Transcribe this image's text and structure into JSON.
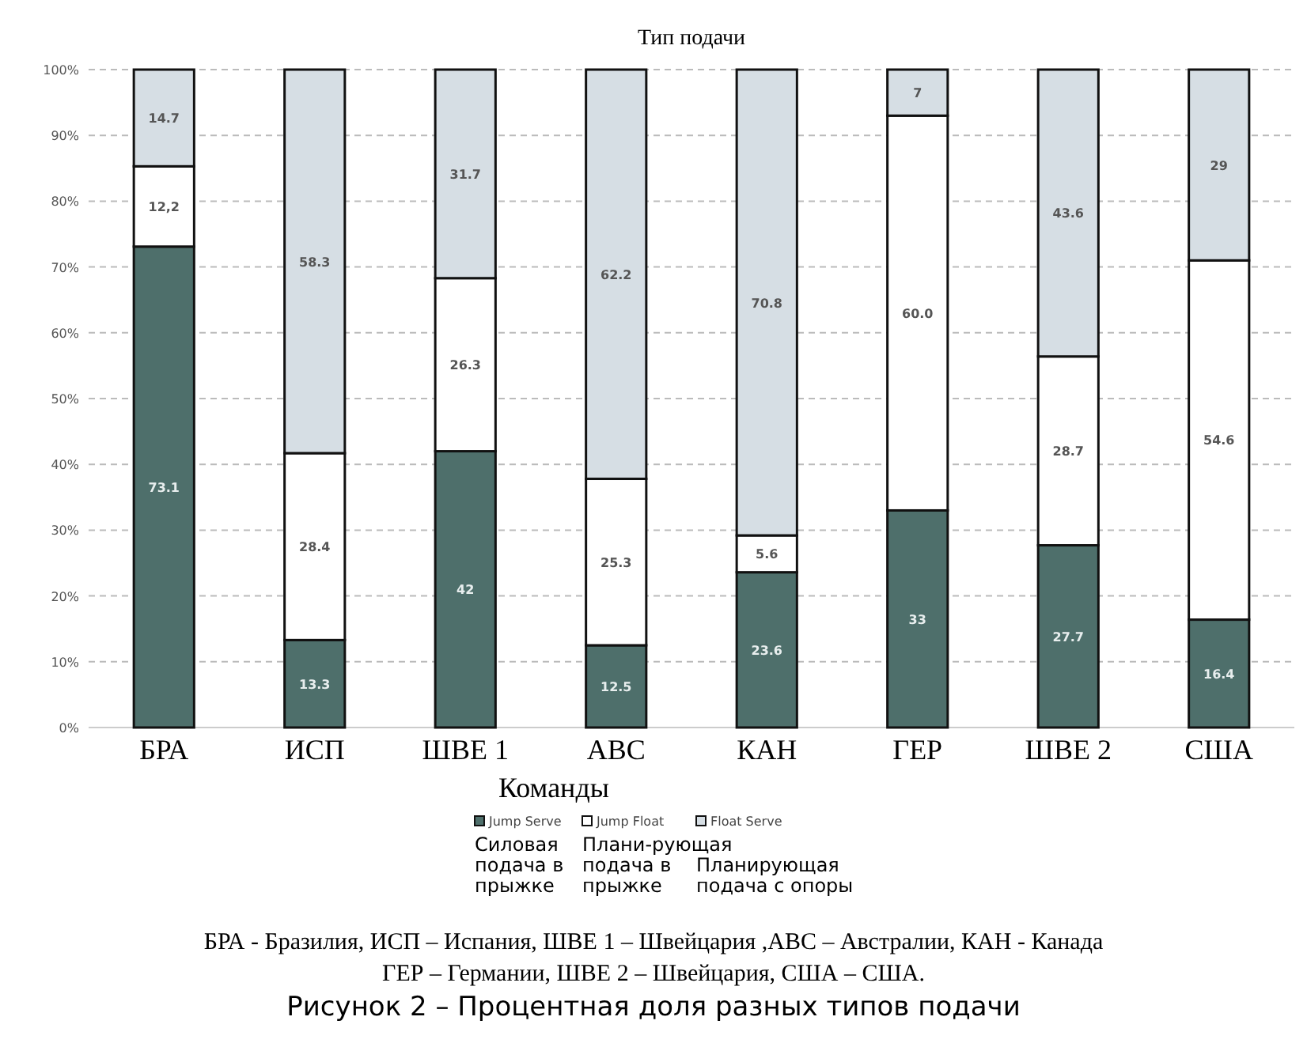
{
  "chart_data": {
    "type": "bar",
    "title": "Тип подачи",
    "xlabel": "Команды",
    "stacked": true,
    "grid": "y",
    "legend": "bottom",
    "categories": [
      "БРА",
      "ИСП",
      "ШВЕ 1",
      "АВС",
      "КАН",
      "ГЕР",
      "ШВЕ 2",
      "США"
    ],
    "ylim": [
      0,
      100
    ],
    "yticks": [
      {
        "value": 0,
        "label": "0%"
      },
      {
        "value": 10,
        "label": "10%"
      },
      {
        "value": 20,
        "label": "20%"
      },
      {
        "value": 30,
        "label": "30%"
      },
      {
        "value": 40,
        "label": "40%"
      },
      {
        "value": 50,
        "label": "50%"
      },
      {
        "value": 60,
        "label": "60%"
      },
      {
        "value": 70,
        "label": "70%"
      },
      {
        "value": 80,
        "label": "80%"
      },
      {
        "value": 90,
        "label": "90%"
      },
      {
        "value": 100,
        "label": "100%"
      }
    ],
    "series": [
      {
        "name": "Jump Serve",
        "color": "#4e6f6b",
        "values": [
          73.1,
          13.3,
          42,
          12.5,
          23.6,
          33,
          27.7,
          16.4
        ],
        "value_labels": [
          "73.1",
          "13.3",
          "42",
          "12.5",
          "23.6",
          "33",
          "27.7",
          "16.4"
        ]
      },
      {
        "name": "Jump Float",
        "color": "#ffffff",
        "values": [
          12.2,
          28.4,
          26.3,
          25.3,
          5.6,
          60.0,
          28.7,
          54.6
        ],
        "value_labels": [
          "12,2",
          "28.4",
          "26.3",
          "25.3",
          "5.6",
          "60.0",
          "28.7",
          "54.6"
        ]
      },
      {
        "name": "Float Serve",
        "color": "#d6dee4",
        "values": [
          14.7,
          58.3,
          31.7,
          62.2,
          70.8,
          7,
          43.6,
          29
        ],
        "value_labels": [
          "14.7",
          "58.3",
          "31.7",
          "62.2",
          "70.8",
          "7",
          "43.6",
          "29"
        ]
      }
    ],
    "annotations": [
      "Силовая подача в прыжке",
      "Плани-рующая подача в прыжке",
      "Планирующая подача с опоры",
      "БРА - Бразилия, ИСП – Испания, ШВЕ 1 – Швейцария ,АВС – Австралии, КАН - Канада",
      "ГЕР – Германии, ШВЕ 2 – Швейцария, США – США.",
      "Рисунок 2 – Процентная доля разных типов подачи"
    ]
  }
}
